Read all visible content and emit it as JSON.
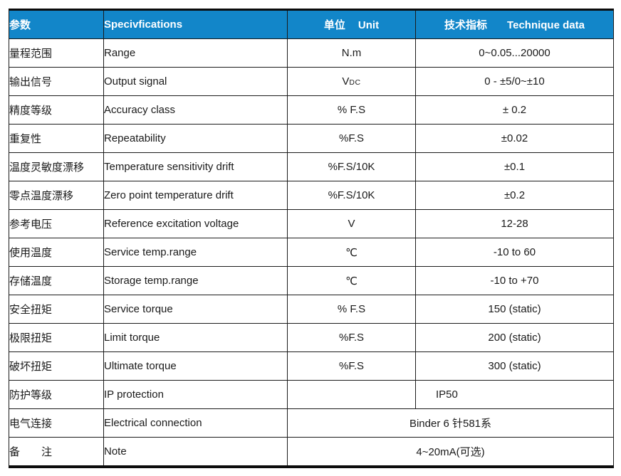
{
  "table": {
    "header": {
      "bg_color": "#1286c9",
      "text_color": "#ffffff",
      "columns": [
        {
          "zh": "参数",
          "en": ""
        },
        {
          "zh": "",
          "en": "Specivfications"
        },
        {
          "zh": "单位",
          "en": "Unit"
        },
        {
          "zh": "技术指标",
          "en": "Technique data"
        }
      ]
    },
    "rows": [
      {
        "param_zh": "量程范围",
        "spec_en": "Range",
        "unit": "N.m",
        "value": "0~0.05...20000"
      },
      {
        "param_zh": "输出信号",
        "spec_en": "Output signal",
        "unit": "V",
        "unit_sub": "DC",
        "value": "0 - ±5/0~±10"
      },
      {
        "param_zh": "精度等级",
        "spec_en": "Accuracy class",
        "unit": "% F.S",
        "value": "± 0.2"
      },
      {
        "param_zh": "重复性",
        "spec_en": "Repeatability",
        "unit": "%F.S",
        "value": "±0.02"
      },
      {
        "param_zh": "温度灵敏度漂移",
        "spec_en": "Temperature sensitivity drift",
        "unit": "%F.S/10K",
        "value": "±0.1"
      },
      {
        "param_zh": "零点温度漂移",
        "spec_en": "Zero point temperature drift",
        "unit": "%F.S/10K",
        "value": "±0.2"
      },
      {
        "param_zh": "参考电压",
        "spec_en": "Reference excitation voltage",
        "unit": "V",
        "value": "12-28"
      },
      {
        "param_zh": "使用温度",
        "spec_en": "Service temp.range",
        "unit": "℃",
        "value": "-10 to 60"
      },
      {
        "param_zh": "存储温度",
        "spec_en": "Storage temp.range",
        "unit": "℃",
        "value": "-10 to +70"
      },
      {
        "param_zh": "安全扭矩",
        "spec_en": "Service torque",
        "unit": "% F.S",
        "value": "150 (static)"
      },
      {
        "param_zh": "极限扭矩",
        "spec_en": "Limit torque",
        "unit": "%F.S",
        "value": "200 (static)"
      },
      {
        "param_zh": "破坏扭矩",
        "spec_en": "Ultimate torque",
        "unit": "%F.S",
        "value": "300 (static)"
      },
      {
        "param_zh": "防护等级",
        "spec_en": "IP protection",
        "unit": "",
        "value": "IP50",
        "value_align": "left"
      },
      {
        "param_zh": "电气连接",
        "spec_en": "Electrical connection",
        "merged_value": "Binder 6 针581系"
      },
      {
        "param_zh": "备　　注",
        "spec_en": "Note",
        "merged_value": "4~20mA(可选)"
      }
    ]
  }
}
